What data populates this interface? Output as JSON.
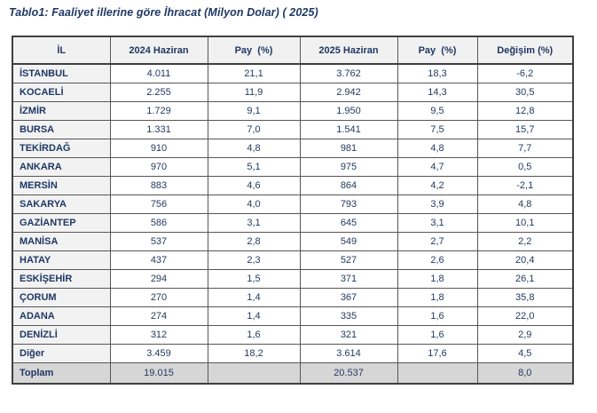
{
  "page": {
    "title": "Tablo1: Faaliyet illerine göre İhracat (Milyon Dolar) ( 2025)"
  },
  "table": {
    "columns": [
      "İL",
      "2024 Haziran",
      "Pay  (%)",
      "2025 Haziran",
      "Pay  (%)",
      "Değişim (%)"
    ],
    "rows": [
      [
        "İSTANBUL",
        "4.011",
        "21,1",
        "3.762",
        "18,3",
        "-6,2"
      ],
      [
        "KOCAELİ",
        "2.255",
        "11,9",
        "2.942",
        "14,3",
        "30,5"
      ],
      [
        "İZMİR",
        "1.729",
        "9,1",
        "1.950",
        "9,5",
        "12,8"
      ],
      [
        "BURSA",
        "1.331",
        "7,0",
        "1.541",
        "7,5",
        "15,7"
      ],
      [
        "TEKİRDAĞ",
        "910",
        "4,8",
        "981",
        "4,8",
        "7,7"
      ],
      [
        "ANKARA",
        "970",
        "5,1",
        "975",
        "4,7",
        "0,5"
      ],
      [
        "MERSİN",
        "883",
        "4,6",
        "864",
        "4,2",
        "-2,1"
      ],
      [
        "SAKARYA",
        "756",
        "4,0",
        "793",
        "3,9",
        "4,8"
      ],
      [
        "GAZİANTEP",
        "586",
        "3,1",
        "645",
        "3,1",
        "10,1"
      ],
      [
        "MANİSA",
        "537",
        "2,8",
        "549",
        "2,7",
        "2,2"
      ],
      [
        "HATAY",
        "437",
        "2,3",
        "527",
        "2,6",
        "20,4"
      ],
      [
        "ESKİŞEHİR",
        "294",
        "1,5",
        "371",
        "1,8",
        "26,1"
      ],
      [
        "ÇORUM",
        "270",
        "1,4",
        "367",
        "1,8",
        "35,8"
      ],
      [
        "ADANA",
        "274",
        "1,4",
        "335",
        "1,6",
        "22,0"
      ],
      [
        "DENİZLİ",
        "312",
        "1,6",
        "321",
        "1,6",
        "2,9"
      ],
      [
        "Diğer",
        "3.459",
        "18,2",
        "3.614",
        "17,6",
        "4,5"
      ]
    ],
    "total_row": [
      "Toplam",
      "19.015",
      "",
      "20.537",
      "",
      "8,0"
    ]
  },
  "colors": {
    "text_navy": "#1f3864",
    "header_bg": "#f1f1f1",
    "label_cell_bg": "#f2f2f2",
    "total_row_bg": "#d6d6d6",
    "border": "#565656",
    "outer_border": "#3f3f3f"
  }
}
